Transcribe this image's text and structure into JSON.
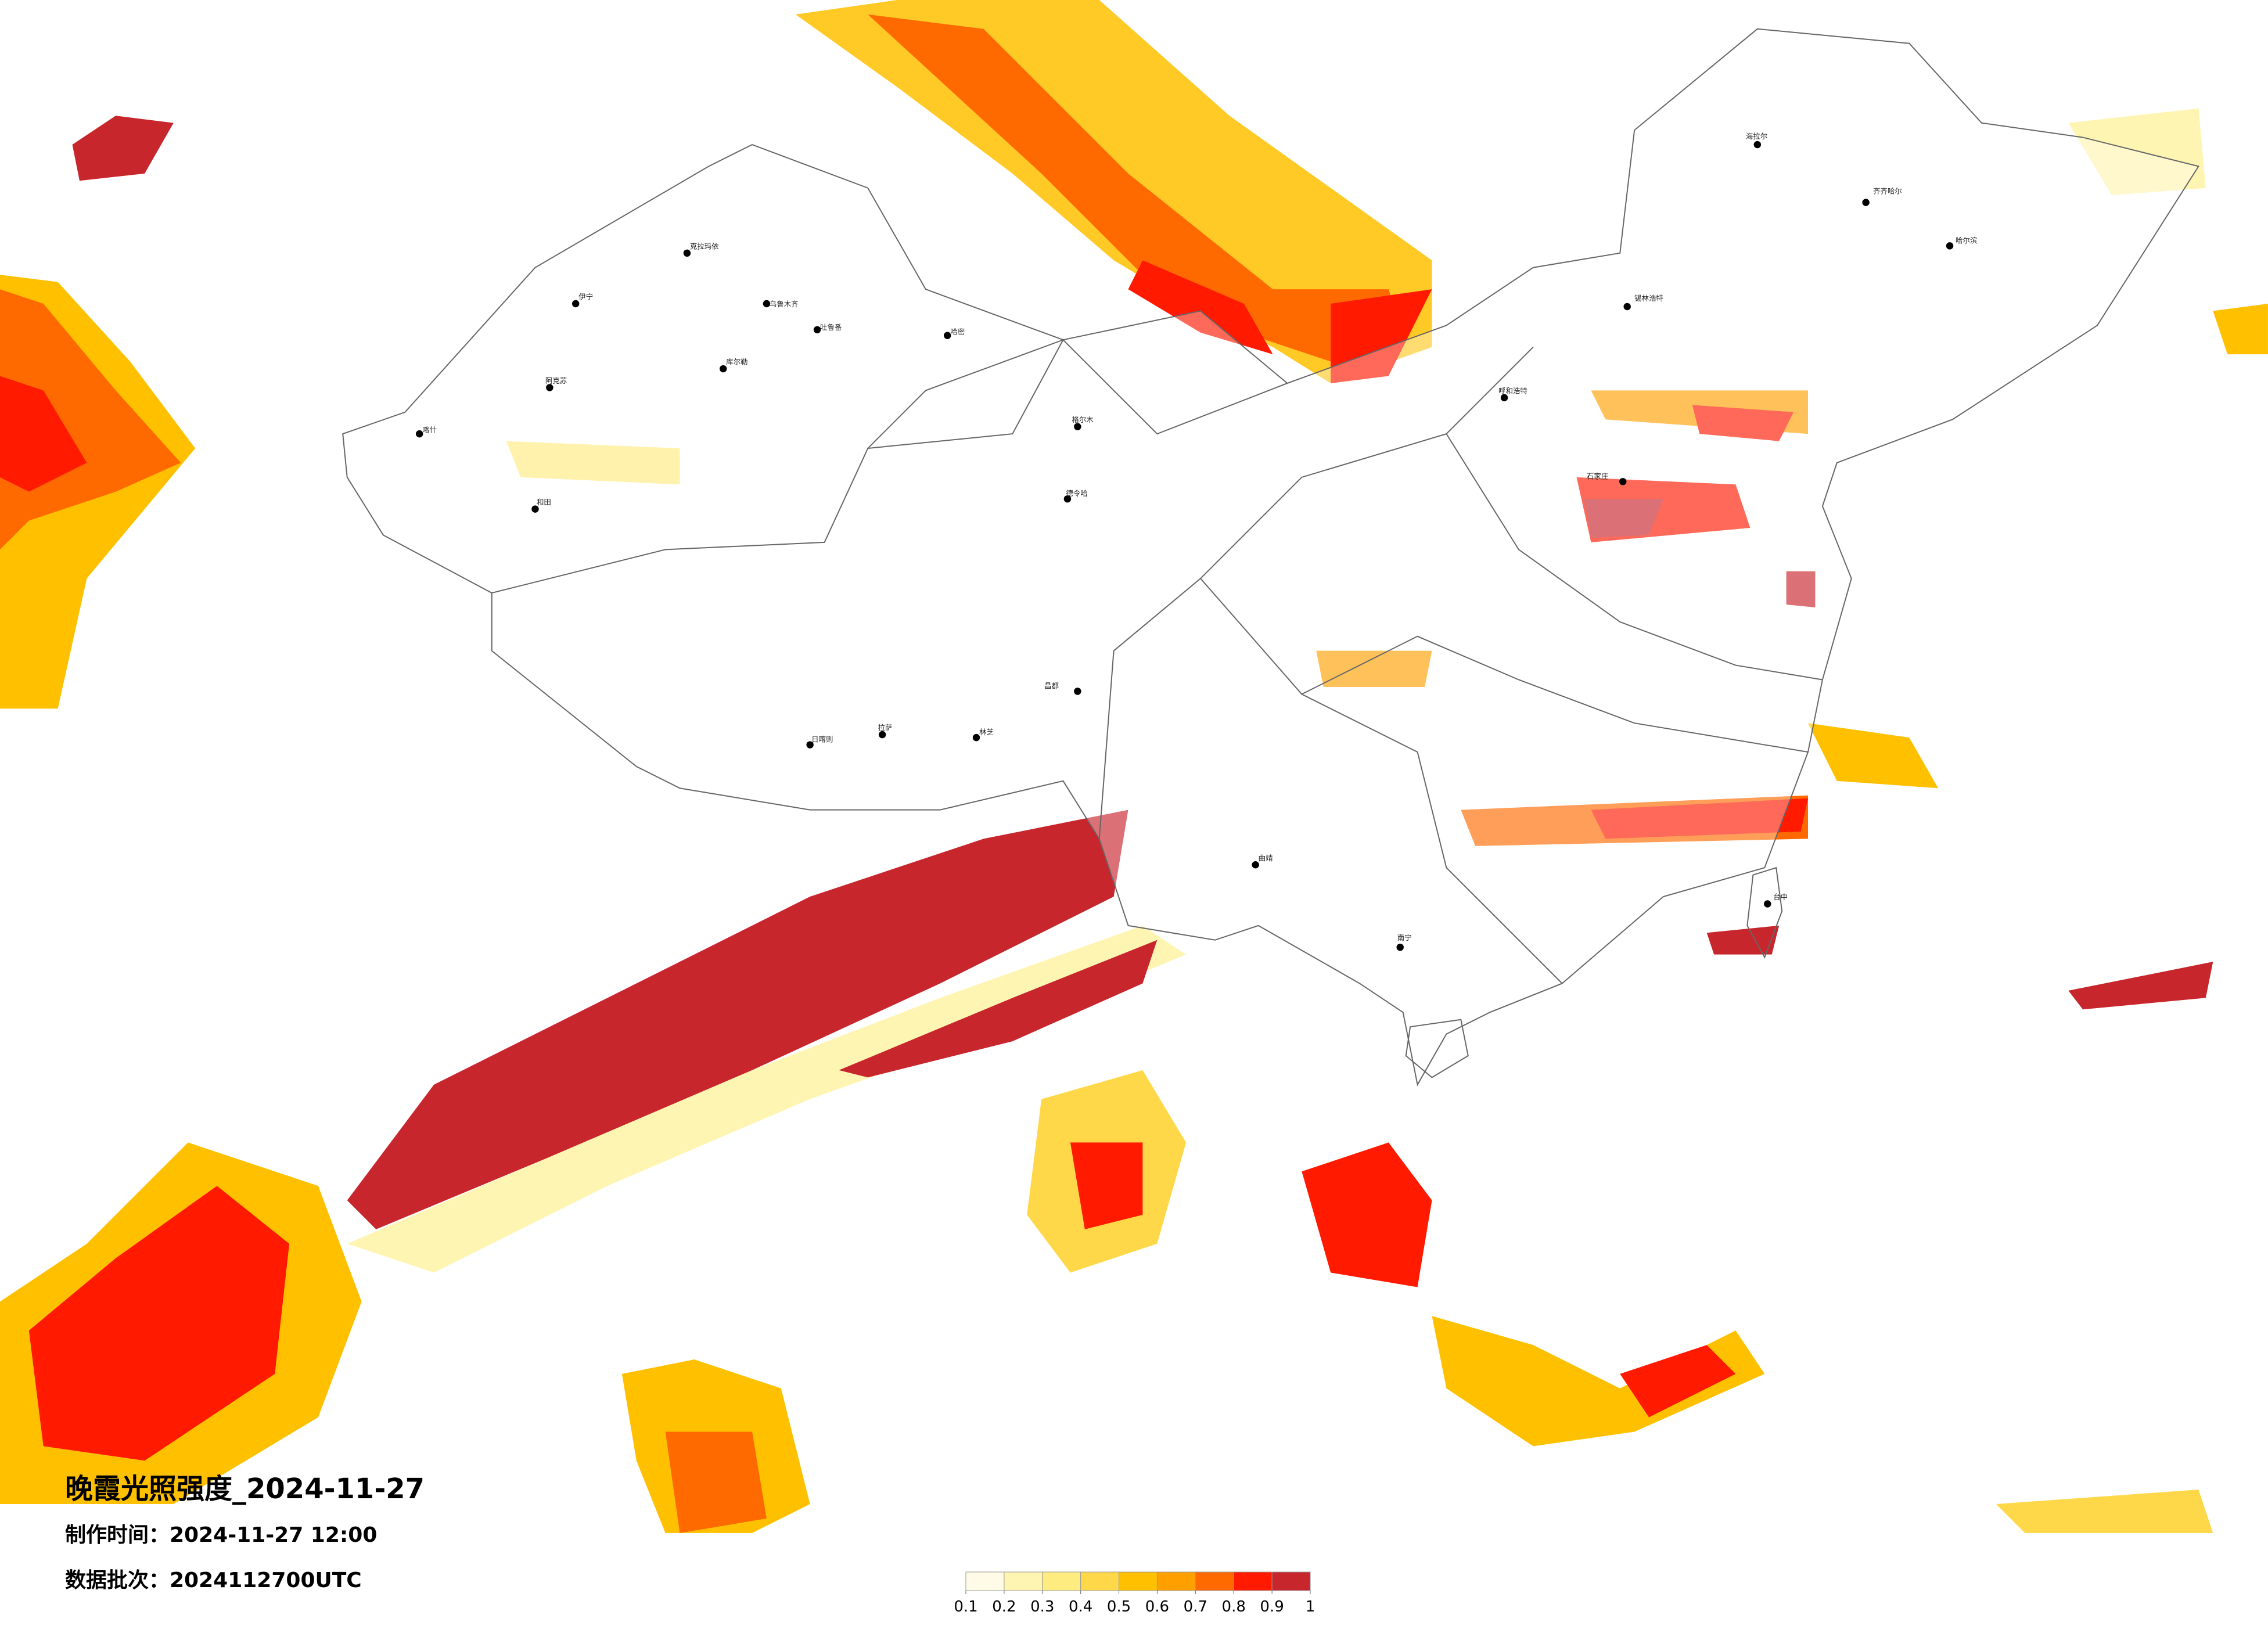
{
  "header": {
    "title": "晚霞光照强度_2024-11-27",
    "info": [
      "制作时间：2024-11-27 12:00",
      "数据批次：2024112700UTC"
    ]
  },
  "legend": {
    "colors": [
      "#fffbe6",
      "#fff5b3",
      "#ffec80",
      "#ffd84a",
      "#ffc000",
      "#ffa000",
      "#ff6a00",
      "#ff1a00",
      "#c8262d"
    ],
    "ticks": [
      0.1,
      0.2,
      0.3,
      0.4,
      0.5,
      0.6,
      0.7,
      0.8,
      0.9,
      1
    ]
  },
  "cities": [
    "克拉玛依",
    "乌鲁木齐",
    "吐鲁番",
    "哈密",
    "库尔勒",
    "阿克苏",
    "和田",
    "喀什",
    "伊宁",
    "格尔木",
    "德令哈",
    "拉萨",
    "日喀则",
    "林芝",
    "海拉尔",
    "齐齐哈尔",
    "哈尔滨",
    "锡林浩特",
    "呼和浩特",
    "石家庄",
    "台中",
    "南宁",
    "曲靖",
    "昌都"
  ]
}
